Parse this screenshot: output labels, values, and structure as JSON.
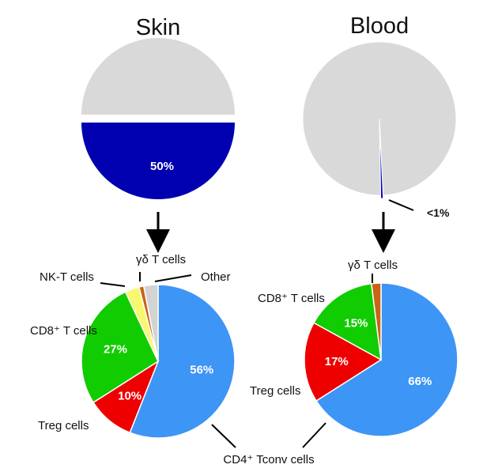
{
  "chart_data": [
    {
      "type": "pie",
      "title": "Skin",
      "slices": [
        {
          "value": 50,
          "color": "#d9d9d9",
          "label": ""
        },
        {
          "value": 50,
          "color": "#0000b0",
          "label": "50%"
        }
      ]
    },
    {
      "type": "pie",
      "title": "Blood",
      "slices": [
        {
          "value": 99.5,
          "color": "#d9d9d9",
          "label": ""
        },
        {
          "value": 0.5,
          "color": "#0000b0",
          "label": "<1%"
        }
      ]
    },
    {
      "type": "pie",
      "title": "",
      "slices": [
        {
          "name": "CD4⁺ Tconv cells",
          "value": 56,
          "color": "#3d95f5",
          "label": "56%"
        },
        {
          "name": "Treg cells",
          "value": 10,
          "color": "#ee0000",
          "label": "10%"
        },
        {
          "name": "CD8⁺ T cells",
          "value": 27,
          "color": "#11cc00",
          "label": "27%"
        },
        {
          "name": "NK-T cells",
          "value": 3,
          "color": "#f8f870",
          "label": ""
        },
        {
          "name": "γδ T cells",
          "value": 1,
          "color": "#c86414",
          "label": ""
        },
        {
          "name": "Other",
          "value": 3,
          "color": "#d3d3d3",
          "label": ""
        }
      ]
    },
    {
      "type": "pie",
      "title": "",
      "slices": [
        {
          "name": "CD4⁺ Tconv cells",
          "value": 66,
          "color": "#3d95f5",
          "label": "66%"
        },
        {
          "name": "Treg cells",
          "value": 17,
          "color": "#ee0000",
          "label": "17%"
        },
        {
          "name": "CD8⁺ T cells",
          "value": 15,
          "color": "#11cc00",
          "label": "15%"
        },
        {
          "name": "γδ T cells",
          "value": 2,
          "color": "#c86414",
          "label": ""
        }
      ]
    }
  ],
  "labels": {
    "cd4": "CD4⁺ Tconv cells",
    "treg": "Treg cells",
    "cd8": "CD8⁺ T cells",
    "nkt": "NK-T cells",
    "gd": "γδ T cells",
    "other": "Other"
  }
}
